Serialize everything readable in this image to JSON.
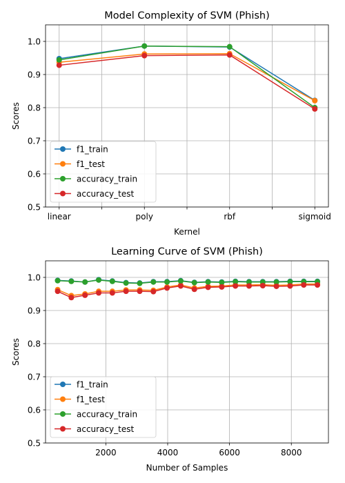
{
  "chart_data": [
    {
      "type": "line",
      "title": "Model Complexity of SVM (Phish)",
      "xlabel": "Kernel",
      "ylabel": "Scores",
      "categories": [
        "linear",
        "poly",
        "rbf",
        "sigmoid"
      ],
      "ylim": [
        0.5,
        1.05
      ],
      "yticks": [
        0.5,
        0.6,
        0.7,
        0.8,
        0.9,
        1.0
      ],
      "grid": true,
      "legend_position": "lower-left",
      "series": [
        {
          "name": "f1_train",
          "color": "#1f77b4",
          "values": [
            0.948,
            0.986,
            0.983,
            0.822
          ]
        },
        {
          "name": "f1_test",
          "color": "#ff7f0e",
          "values": [
            0.937,
            0.962,
            0.963,
            0.821
          ]
        },
        {
          "name": "accuracy_train",
          "color": "#2ca02c",
          "values": [
            0.944,
            0.986,
            0.984,
            0.8
          ]
        },
        {
          "name": "accuracy_test",
          "color": "#d62728",
          "values": [
            0.928,
            0.957,
            0.959,
            0.796
          ]
        }
      ]
    },
    {
      "type": "line",
      "title": "Learning Curve of SVM (Phish)",
      "xlabel": "Number of Samples",
      "ylabel": "Scores",
      "xlim": [
        50,
        9200
      ],
      "ylim": [
        0.5,
        1.05
      ],
      "xticks": [
        2000,
        4000,
        6000,
        8000
      ],
      "yticks": [
        0.5,
        0.6,
        0.7,
        0.8,
        0.9,
        1.0
      ],
      "grid": true,
      "legend_position": "lower-left",
      "x": [
        442,
        884,
        1327,
        1769,
        2211,
        2653,
        3096,
        3538,
        3980,
        4422,
        4864,
        5307,
        5749,
        6191,
        6633,
        7076,
        7518,
        7960,
        8402,
        8844
      ],
      "series": [
        {
          "name": "f1_train",
          "color": "#1f77b4",
          "values": [
            0.991,
            0.989,
            0.986,
            0.993,
            0.989,
            0.984,
            0.983,
            0.987,
            0.987,
            0.99,
            0.985,
            0.987,
            0.986,
            0.988,
            0.987,
            0.987,
            0.987,
            0.988,
            0.988,
            0.988
          ]
        },
        {
          "name": "f1_test",
          "color": "#ff7f0e",
          "values": [
            0.963,
            0.945,
            0.95,
            0.958,
            0.958,
            0.962,
            0.962,
            0.961,
            0.971,
            0.977,
            0.968,
            0.973,
            0.974,
            0.977,
            0.977,
            0.978,
            0.976,
            0.977,
            0.98,
            0.98
          ]
        },
        {
          "name": "accuracy_train",
          "color": "#2ca02c",
          "values": [
            0.99,
            0.988,
            0.986,
            0.992,
            0.988,
            0.983,
            0.982,
            0.986,
            0.986,
            0.989,
            0.984,
            0.986,
            0.985,
            0.987,
            0.986,
            0.986,
            0.986,
            0.987,
            0.987,
            0.987
          ]
        },
        {
          "name": "accuracy_test",
          "color": "#d62728",
          "values": [
            0.958,
            0.939,
            0.946,
            0.953,
            0.953,
            0.958,
            0.958,
            0.957,
            0.968,
            0.974,
            0.964,
            0.97,
            0.971,
            0.974,
            0.974,
            0.975,
            0.973,
            0.974,
            0.977,
            0.977
          ]
        }
      ]
    }
  ]
}
